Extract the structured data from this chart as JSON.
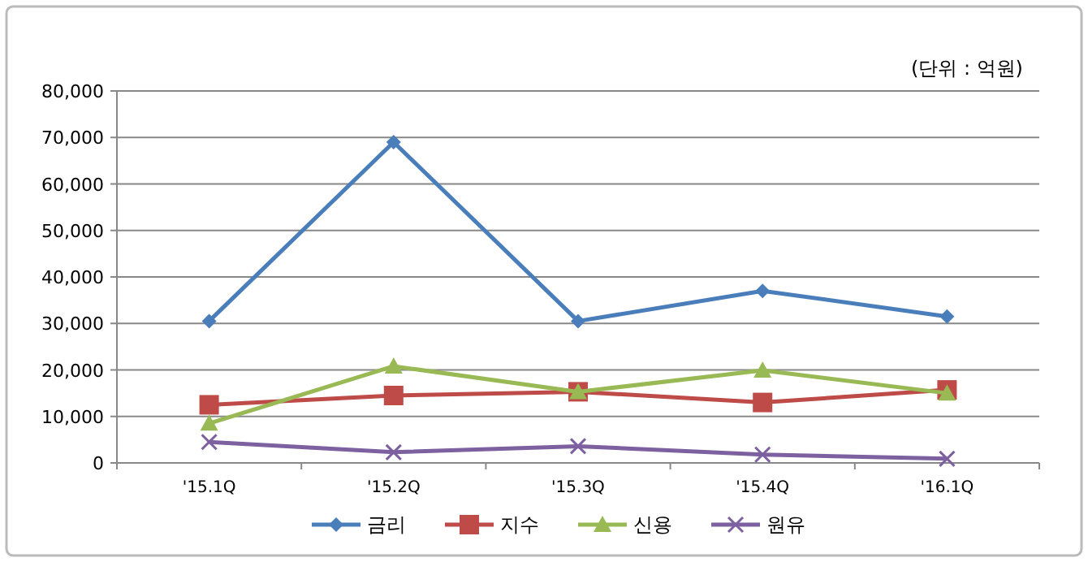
{
  "chart_data": {
    "type": "line",
    "annotations": [
      "(단위 : 억원)"
    ],
    "categories": [
      "'15.1Q",
      "'15.2Q",
      "'15.3Q",
      "'15.4Q",
      "'16.1Q"
    ],
    "series": [
      {
        "name": "금리",
        "color": "#4a7ebb",
        "marker": "diamond",
        "values": [
          30500,
          69000,
          30500,
          37000,
          31500
        ]
      },
      {
        "name": "지수",
        "color": "#be4b48",
        "marker": "square",
        "values": [
          12500,
          14500,
          15300,
          13000,
          15700
        ]
      },
      {
        "name": "신용",
        "color": "#98b954",
        "marker": "triangle",
        "values": [
          8500,
          20800,
          15300,
          19900,
          15000
        ]
      },
      {
        "name": "원유",
        "color": "#7d60a0",
        "marker": "cross",
        "values": [
          4500,
          2300,
          3600,
          1800,
          900
        ]
      }
    ],
    "ylim": [
      0,
      80000
    ],
    "yticks": [
      {
        "value": 0,
        "label": "0"
      },
      {
        "value": 10000,
        "label": "10,000"
      },
      {
        "value": 20000,
        "label": "20,000"
      },
      {
        "value": 30000,
        "label": "30,000"
      },
      {
        "value": 40000,
        "label": "40,000"
      },
      {
        "value": 50000,
        "label": "50,000"
      },
      {
        "value": 60000,
        "label": "60,000"
      },
      {
        "value": 70000,
        "label": "70,000"
      },
      {
        "value": 80000,
        "label": "80,000"
      }
    ],
    "grid": "y",
    "legend": "bottom",
    "line_style": "solid"
  }
}
